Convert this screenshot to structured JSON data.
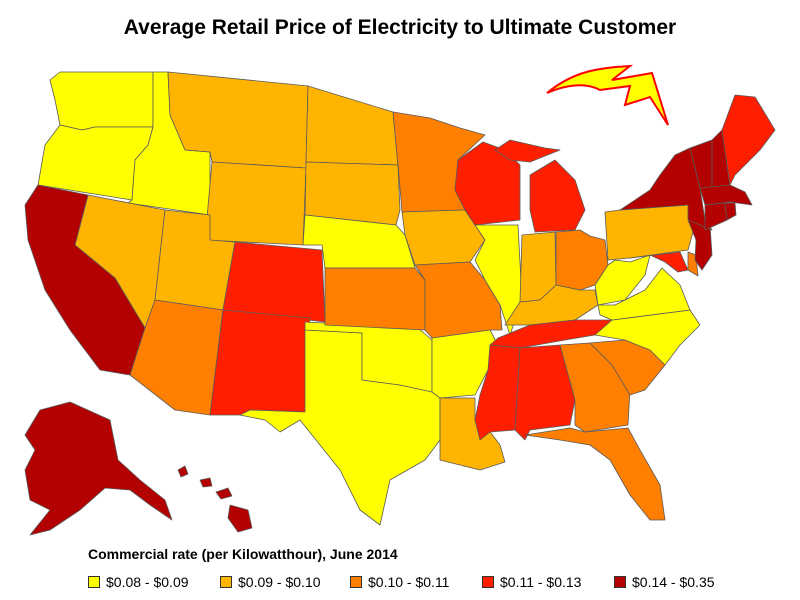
{
  "title": "Average Retail Price of Electricity to Ultimate Customer",
  "legend": {
    "title": "Commercial rate (per Kilowatthour), June 2014",
    "items": [
      {
        "label": "$0.08 - $0.09",
        "color": "#ffff00"
      },
      {
        "label": "$0.09 - $0.10",
        "color": "#ffb400"
      },
      {
        "label": "$0.10 - $0.11",
        "color": "#ff7f00"
      },
      {
        "label": "$0.11 - $0.13",
        "color": "#ff1e00"
      },
      {
        "label": "$0.14 - $0.35",
        "color": "#b30000"
      }
    ]
  },
  "decoration": {
    "icon": "lightning-bolt-icon",
    "fill": "#ffff00",
    "stroke": "#ff0000"
  },
  "states": {
    "WA": 0,
    "OR": 0,
    "ID": 0,
    "MT": 1,
    "WY": 1,
    "ND": 1,
    "SD": 1,
    "NE": 0,
    "CA": 4,
    "NV": 1,
    "UT": 1,
    "CO": 3,
    "AZ": 2,
    "NM": 3,
    "TX": 0,
    "OK": 0,
    "KS": 2,
    "MN": 2,
    "IA": 1,
    "MO": 2,
    "AR": 0,
    "LA": 1,
    "WI": 3,
    "IL": 0,
    "MI": 3,
    "IN": 1,
    "OH": 2,
    "KY": 1,
    "TN": 3,
    "MS": 3,
    "AL": 3,
    "GA": 2,
    "FL": 2,
    "SC": 2,
    "NC": 0,
    "VA": 0,
    "WV": 0,
    "PA": 1,
    "NY": 4,
    "ME": 3,
    "VT": 4,
    "NH": 4,
    "MA": 4,
    "CT": 4,
    "RI": 4,
    "NJ": 4,
    "DE": 2,
    "MD": 3,
    "AK": 4,
    "HI": 4
  }
}
